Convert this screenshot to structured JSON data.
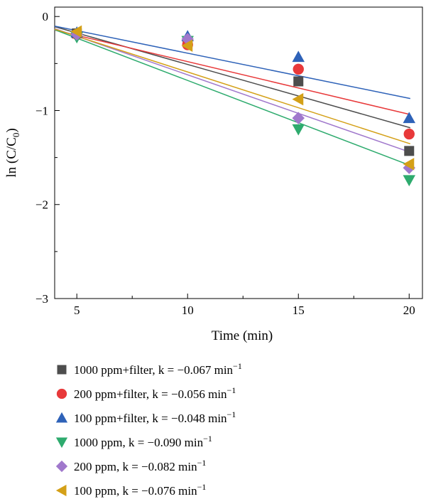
{
  "chart_data": {
    "type": "scatter",
    "xlabel": "Time (min)",
    "ylabel": "ln (C/C",
    "ylabel_sub": "0",
    "ylabel_close": ")",
    "xlim": [
      4,
      20.6
    ],
    "ylim": [
      -3,
      0.1
    ],
    "xticks": [
      5,
      10,
      15,
      20
    ],
    "yticks": [
      0,
      -1,
      -2,
      -3
    ],
    "ytick_labels": [
      "0",
      "−1",
      "−2",
      "−3"
    ],
    "legend_position": "below",
    "series": [
      {
        "name": "1000 ppm+filter, k = −0.067 min",
        "name_sup": "−1",
        "color": "#4d4d4d",
        "marker": "square",
        "x": [
          5,
          10,
          15,
          20
        ],
        "y": [
          -0.18,
          -0.26,
          -0.69,
          -1.43
        ],
        "fit": {
          "slope": -0.067,
          "intercept": 0.16
        }
      },
      {
        "name": "200 ppm+filter, k = −0.056 min",
        "name_sup": "−1",
        "color": "#e8393a",
        "marker": "circle",
        "x": [
          5,
          10,
          15,
          20
        ],
        "y": [
          -0.19,
          -0.3,
          -0.56,
          -1.25
        ],
        "fit": {
          "slope": -0.056,
          "intercept": 0.08
        }
      },
      {
        "name": "100 ppm+filter, k = −0.048 min",
        "name_sup": "−1",
        "color": "#2e62b8",
        "marker": "triangle-up",
        "x": [
          5,
          10,
          15,
          20
        ],
        "y": [
          -0.17,
          -0.21,
          -0.43,
          -1.08
        ],
        "fit": {
          "slope": -0.048,
          "intercept": 0.09
        }
      },
      {
        "name": "1000 ppm, k = −0.090 min",
        "name_sup": "−1",
        "color": "#2eab6e",
        "marker": "triangle-down",
        "x": [
          5,
          10,
          15,
          20
        ],
        "y": [
          -0.22,
          -0.26,
          -1.2,
          -1.74
        ],
        "fit": {
          "slope": -0.09,
          "intercept": 0.22
        }
      },
      {
        "name": "200 ppm, k = −0.082 min",
        "name_sup": "−1",
        "color": "#a078cc",
        "marker": "diamond",
        "x": [
          5,
          10,
          15,
          20
        ],
        "y": [
          -0.19,
          -0.24,
          -1.08,
          -1.61
        ],
        "fit": {
          "slope": -0.082,
          "intercept": 0.2
        }
      },
      {
        "name": "100 ppm, k = −0.076 min",
        "name_sup": "−1",
        "color": "#d4a017",
        "marker": "triangle-left",
        "x": [
          5,
          10,
          15,
          20
        ],
        "y": [
          -0.16,
          -0.31,
          -0.88,
          -1.57
        ],
        "fit": {
          "slope": -0.076,
          "intercept": 0.17
        }
      }
    ]
  }
}
